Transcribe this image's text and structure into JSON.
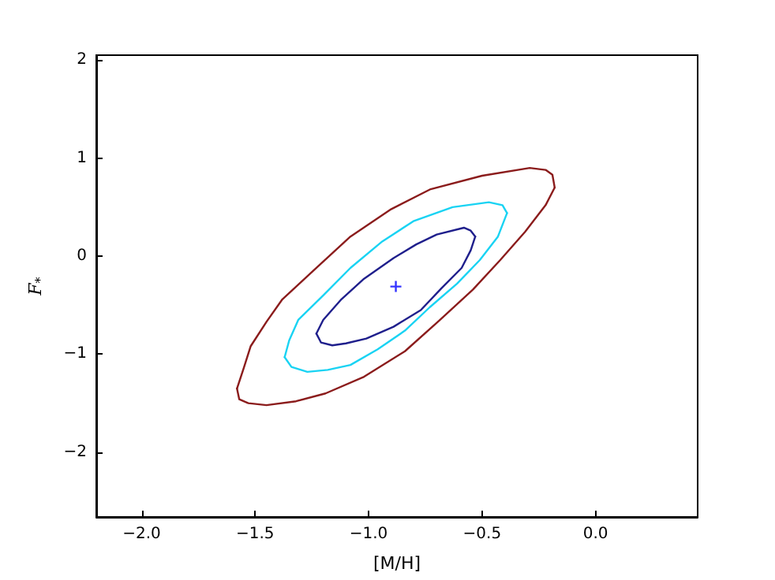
{
  "chart_data": {
    "type": "line",
    "xlabel": "[M/H]",
    "ylabel": "F$_{*}$",
    "xlim": [
      -2.2,
      0.45
    ],
    "ylim": [
      -2.66,
      2.05
    ],
    "xticks": [
      {
        "value": -2,
        "label": "−2.0"
      },
      {
        "value": -1.5,
        "label": "−1.5"
      },
      {
        "value": -1,
        "label": "−1.0"
      },
      {
        "value": -0.5,
        "label": "−0.5"
      },
      {
        "value": 0,
        "label": "0.0"
      }
    ],
    "yticks": [
      {
        "value": -2,
        "label": "−2"
      },
      {
        "value": -1,
        "label": "−1"
      },
      0,
      1,
      2
    ],
    "grid": false,
    "marker": "none",
    "line_style": "solid",
    "series": [
      {
        "color": "#8b1c1c",
        "x": [
          -1.58,
          -1.55,
          -1.52,
          -1.45,
          -1.38,
          -1.23,
          -1.08,
          -0.9,
          -0.73,
          -0.5,
          -0.29,
          -0.22,
          -0.19,
          -0.18
        ],
        "values": [
          -1.35,
          -1.14,
          -0.92,
          -0.67,
          -0.44,
          -0.12,
          0.2,
          0.48,
          0.68,
          0.82,
          0.9,
          0.88,
          0.83,
          0.7
        ]
      },
      {
        "color": "#8b1c1c",
        "x": [
          -1.58,
          -1.57,
          -1.53,
          -1.45,
          -1.32,
          -1.19,
          -1.02,
          -0.84,
          -0.69,
          -0.54,
          -0.42,
          -0.31,
          -0.22,
          -0.18
        ],
        "values": [
          -1.35,
          -1.46,
          -1.5,
          -1.52,
          -1.48,
          -1.4,
          -1.23,
          -0.97,
          -0.66,
          -0.34,
          -0.04,
          0.25,
          0.52,
          0.7
        ]
      },
      {
        "color": "#19d3f3",
        "x": [
          -1.37,
          -1.35,
          -1.31,
          -1.2,
          -1.08,
          -0.94,
          -0.8,
          -0.63,
          -0.47,
          -0.41,
          -0.39
        ],
        "values": [
          -1.03,
          -0.86,
          -0.65,
          -0.4,
          -0.12,
          0.15,
          0.36,
          0.5,
          0.55,
          0.52,
          0.44
        ]
      },
      {
        "color": "#19d3f3",
        "x": [
          -1.37,
          -1.34,
          -1.27,
          -1.18,
          -1.08,
          -0.96,
          -0.84,
          -0.73,
          -0.61,
          -0.51,
          -0.43,
          -0.39
        ],
        "values": [
          -1.03,
          -1.13,
          -1.18,
          -1.16,
          -1.11,
          -0.95,
          -0.76,
          -0.52,
          -0.28,
          -0.04,
          0.2,
          0.44
        ]
      },
      {
        "color": "#1f1f8c",
        "x": [
          -1.23,
          -1.2,
          -1.12,
          -1.02,
          -0.89,
          -0.79,
          -0.7,
          -0.58,
          -0.55,
          -0.53
        ],
        "values": [
          -0.79,
          -0.65,
          -0.44,
          -0.23,
          -0.02,
          0.12,
          0.22,
          0.29,
          0.26,
          0.2
        ]
      },
      {
        "color": "#1f1f8c",
        "x": [
          -1.23,
          -1.21,
          -1.16,
          -1.1,
          -1.01,
          -0.89,
          -0.77,
          -0.68,
          -0.59,
          -0.55,
          -0.53
        ],
        "values": [
          -0.79,
          -0.88,
          -0.91,
          -0.89,
          -0.84,
          -0.72,
          -0.55,
          -0.33,
          -0.12,
          0.06,
          0.2
        ]
      },
      {
        "type": "scatter",
        "marker": "cross",
        "color": "#0000ff",
        "x": [
          -0.88
        ],
        "values": [
          -0.31
        ]
      }
    ]
  }
}
